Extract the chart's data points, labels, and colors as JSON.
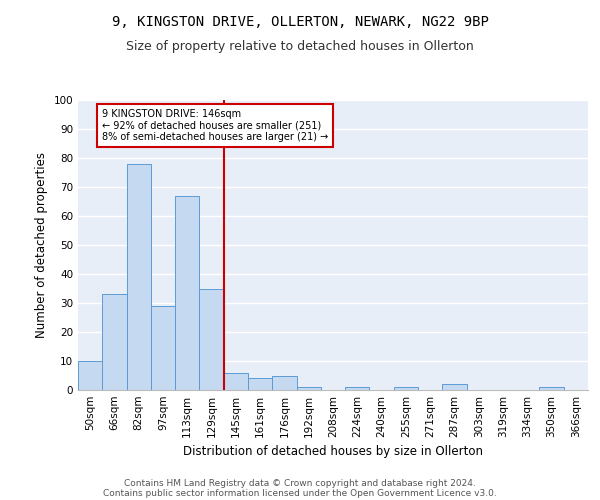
{
  "title_line1": "9, KINGSTON DRIVE, OLLERTON, NEWARK, NG22 9BP",
  "title_line2": "Size of property relative to detached houses in Ollerton",
  "xlabel": "Distribution of detached houses by size in Ollerton",
  "ylabel": "Number of detached properties",
  "categories": [
    "50sqm",
    "66sqm",
    "82sqm",
    "97sqm",
    "113sqm",
    "129sqm",
    "145sqm",
    "161sqm",
    "176sqm",
    "192sqm",
    "208sqm",
    "224sqm",
    "240sqm",
    "255sqm",
    "271sqm",
    "287sqm",
    "303sqm",
    "319sqm",
    "334sqm",
    "350sqm",
    "366sqm"
  ],
  "values": [
    10,
    33,
    78,
    29,
    67,
    35,
    6,
    4,
    5,
    1,
    0,
    1,
    0,
    1,
    0,
    2,
    0,
    0,
    0,
    1,
    0
  ],
  "bar_color": "#c5d9f0",
  "bar_edge_color": "#5b9bd5",
  "vline_x_index": 6,
  "vline_color": "#cc0000",
  "annotation_text": "9 KINGSTON DRIVE: 146sqm\n← 92% of detached houses are smaller (251)\n8% of semi-detached houses are larger (21) →",
  "annotation_box_color": "#cc0000",
  "ylim": [
    0,
    100
  ],
  "yticks": [
    0,
    10,
    20,
    30,
    40,
    50,
    60,
    70,
    80,
    90,
    100
  ],
  "footer_line1": "Contains HM Land Registry data © Crown copyright and database right 2024.",
  "footer_line2": "Contains public sector information licensed under the Open Government Licence v3.0.",
  "bg_color": "#e8eef8",
  "grid_color": "#ffffff",
  "title_fontsize": 10,
  "subtitle_fontsize": 9,
  "axis_label_fontsize": 8.5,
  "tick_fontsize": 7.5,
  "footer_fontsize": 6.5
}
